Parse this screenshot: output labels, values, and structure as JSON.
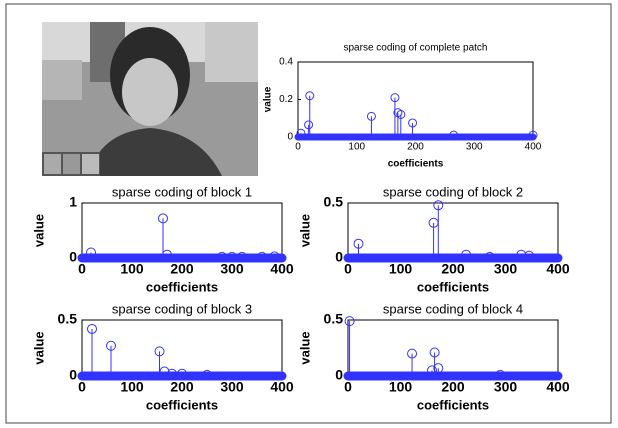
{
  "chart_data": [
    {
      "type": "stem",
      "title": "sparse coding of complete patch",
      "x_label": "coefficients",
      "y_label": "value",
      "color": "#3333ff",
      "xlim": [
        0,
        400
      ],
      "ylim": [
        0,
        0.4
      ],
      "xticks": [
        0,
        100,
        200,
        300,
        400
      ],
      "yticks": [
        0,
        0.2,
        0.4
      ],
      "x": [
        5,
        18,
        20,
        125,
        165,
        170,
        175,
        195,
        265,
        400
      ],
      "values": [
        0.02,
        0.065,
        0.22,
        0.11,
        0.21,
        0.13,
        0.12,
        0.075,
        0.01,
        0.01
      ]
    },
    {
      "type": "stem",
      "title": "sparse coding of block 1",
      "x_label": "coefficients",
      "y_label": "value",
      "color": "#3333ff",
      "xlim": [
        0,
        400
      ],
      "ylim": [
        0,
        1
      ],
      "xticks": [
        0,
        100,
        200,
        300,
        400
      ],
      "yticks": [
        0,
        1
      ],
      "x": [
        18,
        162,
        170,
        280,
        300,
        320,
        360,
        385
      ],
      "values": [
        0.1,
        0.72,
        0.06,
        0.02,
        0.02,
        0.02,
        0.02,
        0.03
      ]
    },
    {
      "type": "stem",
      "title": "sparse coding of block 2",
      "x_label": "coefficients",
      "y_label": "value",
      "color": "#3333ff",
      "xlim": [
        0,
        400
      ],
      "ylim": [
        0,
        0.5
      ],
      "xticks": [
        0,
        100,
        200,
        300,
        400
      ],
      "yticks": [
        0,
        0.5
      ],
      "x": [
        20,
        163,
        172,
        225,
        270,
        330,
        345
      ],
      "values": [
        0.13,
        0.32,
        0.48,
        0.03,
        0.01,
        0.03,
        0.02
      ]
    },
    {
      "type": "stem",
      "title": "sparse coding of block 3",
      "x_label": "coefficients",
      "y_label": "value",
      "color": "#3333ff",
      "xlim": [
        0,
        400
      ],
      "ylim": [
        0,
        0.5
      ],
      "xticks": [
        0,
        100,
        200,
        300,
        400
      ],
      "yticks": [
        0,
        0.5
      ],
      "x": [
        20,
        58,
        155,
        165,
        180,
        200,
        250
      ],
      "values": [
        0.42,
        0.27,
        0.22,
        0.04,
        0.02,
        0.02,
        0.01
      ]
    },
    {
      "type": "stem",
      "title": "sparse coding of block 4",
      "x_label": "coefficients",
      "y_label": "value",
      "color": "#3333ff",
      "xlim": [
        0,
        400
      ],
      "ylim": [
        0,
        0.5
      ],
      "xticks": [
        0,
        100,
        200,
        300,
        400
      ],
      "yticks": [
        0,
        0.5
      ],
      "x": [
        3,
        122,
        160,
        165,
        172,
        290
      ],
      "values": [
        0.49,
        0.2,
        0.05,
        0.21,
        0.07,
        0.01
      ]
    }
  ]
}
